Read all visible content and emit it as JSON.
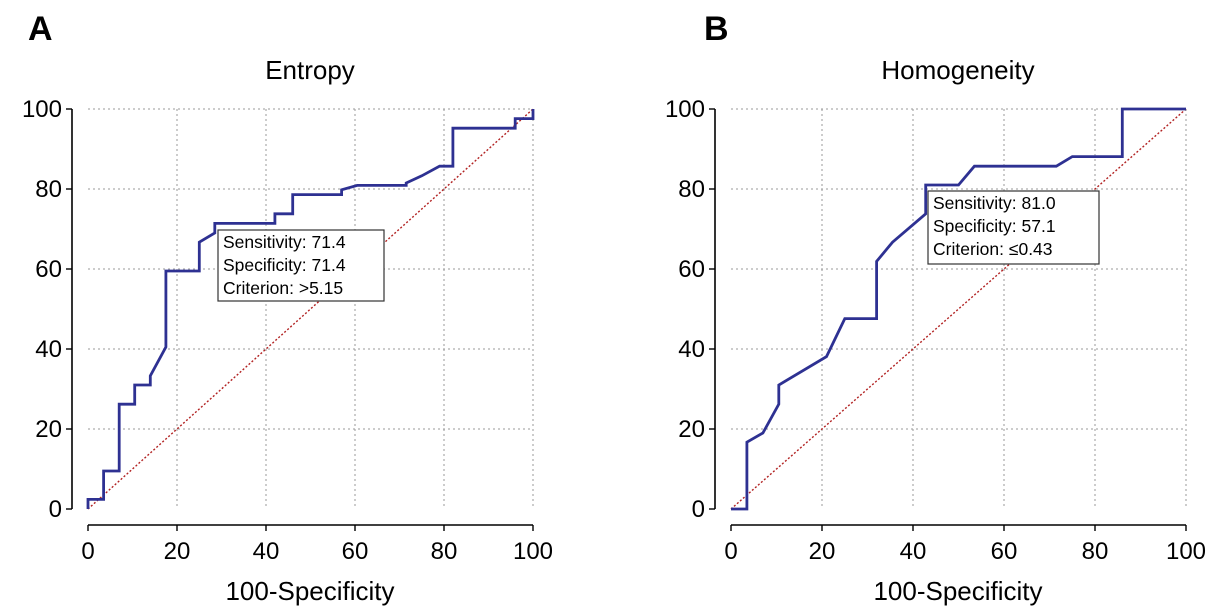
{
  "chart_data": [
    {
      "type": "line",
      "panel": "A",
      "title": "Entropy",
      "xlabel": "100-Specificity",
      "ylabel": "",
      "xlim": [
        0,
        100
      ],
      "ylim": [
        0,
        100
      ],
      "xticks": [
        0,
        20,
        40,
        60,
        80,
        100
      ],
      "yticks": [
        0,
        20,
        40,
        60,
        80,
        100
      ],
      "grid": true,
      "roc_color": "#2e3192",
      "diagonal_color": "#b22222",
      "series": [
        {
          "x": [
            0,
            0,
            3.5,
            3.5,
            7,
            7,
            10.5,
            10.5,
            14,
            14,
            17.5,
            17.5,
            25,
            25,
            28.5,
            28.5,
            42,
            42,
            46,
            46,
            57,
            57,
            60.5,
            60.5,
            71.5,
            71.5,
            75,
            75,
            79,
            79,
            82,
            82,
            96,
            96,
            100,
            100
          ],
          "y": [
            0,
            2.4,
            2.4,
            9.5,
            9.5,
            26.2,
            26.2,
            31,
            31,
            33.3,
            40.5,
            59.5,
            59.5,
            66.7,
            69,
            71.4,
            71.4,
            73.8,
            73.8,
            78.6,
            78.6,
            79.8,
            80.9,
            80.9,
            80.9,
            81.5,
            83.3,
            83.3,
            85.7,
            85.7,
            85.7,
            95.2,
            95.2,
            97.6,
            97.6,
            100
          ]
        }
      ],
      "annotation": {
        "lines": [
          "Sensitivity: 71.4",
          "Specificity: 71.4",
          "Criterion: >5.15"
        ]
      }
    },
    {
      "type": "line",
      "panel": "B",
      "title": "Homogeneity",
      "xlabel": "100-Specificity",
      "ylabel": "",
      "xlim": [
        0,
        100
      ],
      "ylim": [
        0,
        100
      ],
      "xticks": [
        0,
        20,
        40,
        60,
        80,
        100
      ],
      "yticks": [
        0,
        20,
        40,
        60,
        80,
        100
      ],
      "grid": true,
      "roc_color": "#2e3192",
      "diagonal_color": "#b22222",
      "series": [
        {
          "x": [
            0,
            3.5,
            3.5,
            7,
            10.5,
            10.5,
            21,
            25,
            32,
            32,
            35.5,
            42.8,
            42.8,
            50,
            53.5,
            71.5,
            75,
            86,
            86,
            100
          ],
          "y": [
            0,
            0,
            16.7,
            19,
            26.2,
            31,
            38.1,
            47.6,
            47.6,
            61.9,
            66.7,
            73.8,
            81,
            81,
            85.7,
            85.7,
            88.1,
            88.1,
            100,
            100
          ]
        }
      ],
      "annotation": {
        "lines": [
          "Sensitivity: 81.0",
          "Specificity: 57.1",
          "Criterion: ≤0.43"
        ]
      }
    }
  ]
}
